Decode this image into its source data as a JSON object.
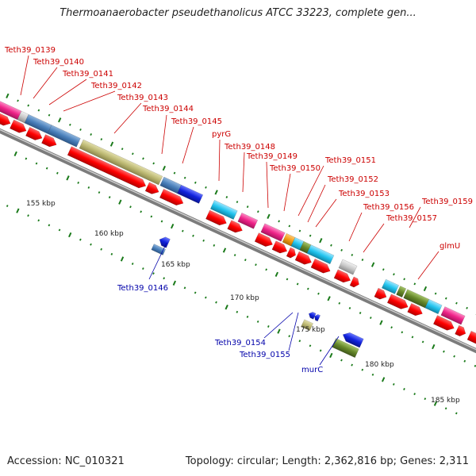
{
  "title": "Thermoanaerobacter pseudethanolicus ATCC 33223, complete gen...",
  "footer": {
    "accession": "Accession: NC_010321",
    "summary": "Topology: circular; Length: 2,362,816 bp; Genes: 2,311"
  },
  "colors": {
    "red": "#ff0000",
    "pink": "#ee2288",
    "steel": "#4a80bb",
    "olive": "#bcb872",
    "cyan": "#22c4ee",
    "green": "#66882a",
    "blue": "#1122dd",
    "gray": "#c8c8c8",
    "orange": "#f39c12",
    "label_red": "#cc0000",
    "label_blue": "#0000aa",
    "tick": "#1a7a1a"
  },
  "scale_labels": [
    "155 kbp",
    "160 kbp",
    "165 kbp",
    "170 kbp",
    "175 kbp",
    "180 kbp",
    "185 kbp"
  ],
  "labels": [
    "Teth39_0139",
    "Teth39_0140",
    "Teth39_0141",
    "Teth39_0142",
    "Teth39_0143",
    "Teth39_0144",
    "Teth39_0145",
    "pyrG",
    "Teth39_0148",
    "Teth39_0149",
    "Teth39_0150",
    "Teth39_0151",
    "Teth39_0152",
    "Teth39_0153",
    "Teth39_0156",
    "Teth39_0157",
    "Teth39_0159",
    "glmU",
    "Teth39_0146",
    "Teth39_0154",
    "Teth39_0155",
    "murC"
  ]
}
